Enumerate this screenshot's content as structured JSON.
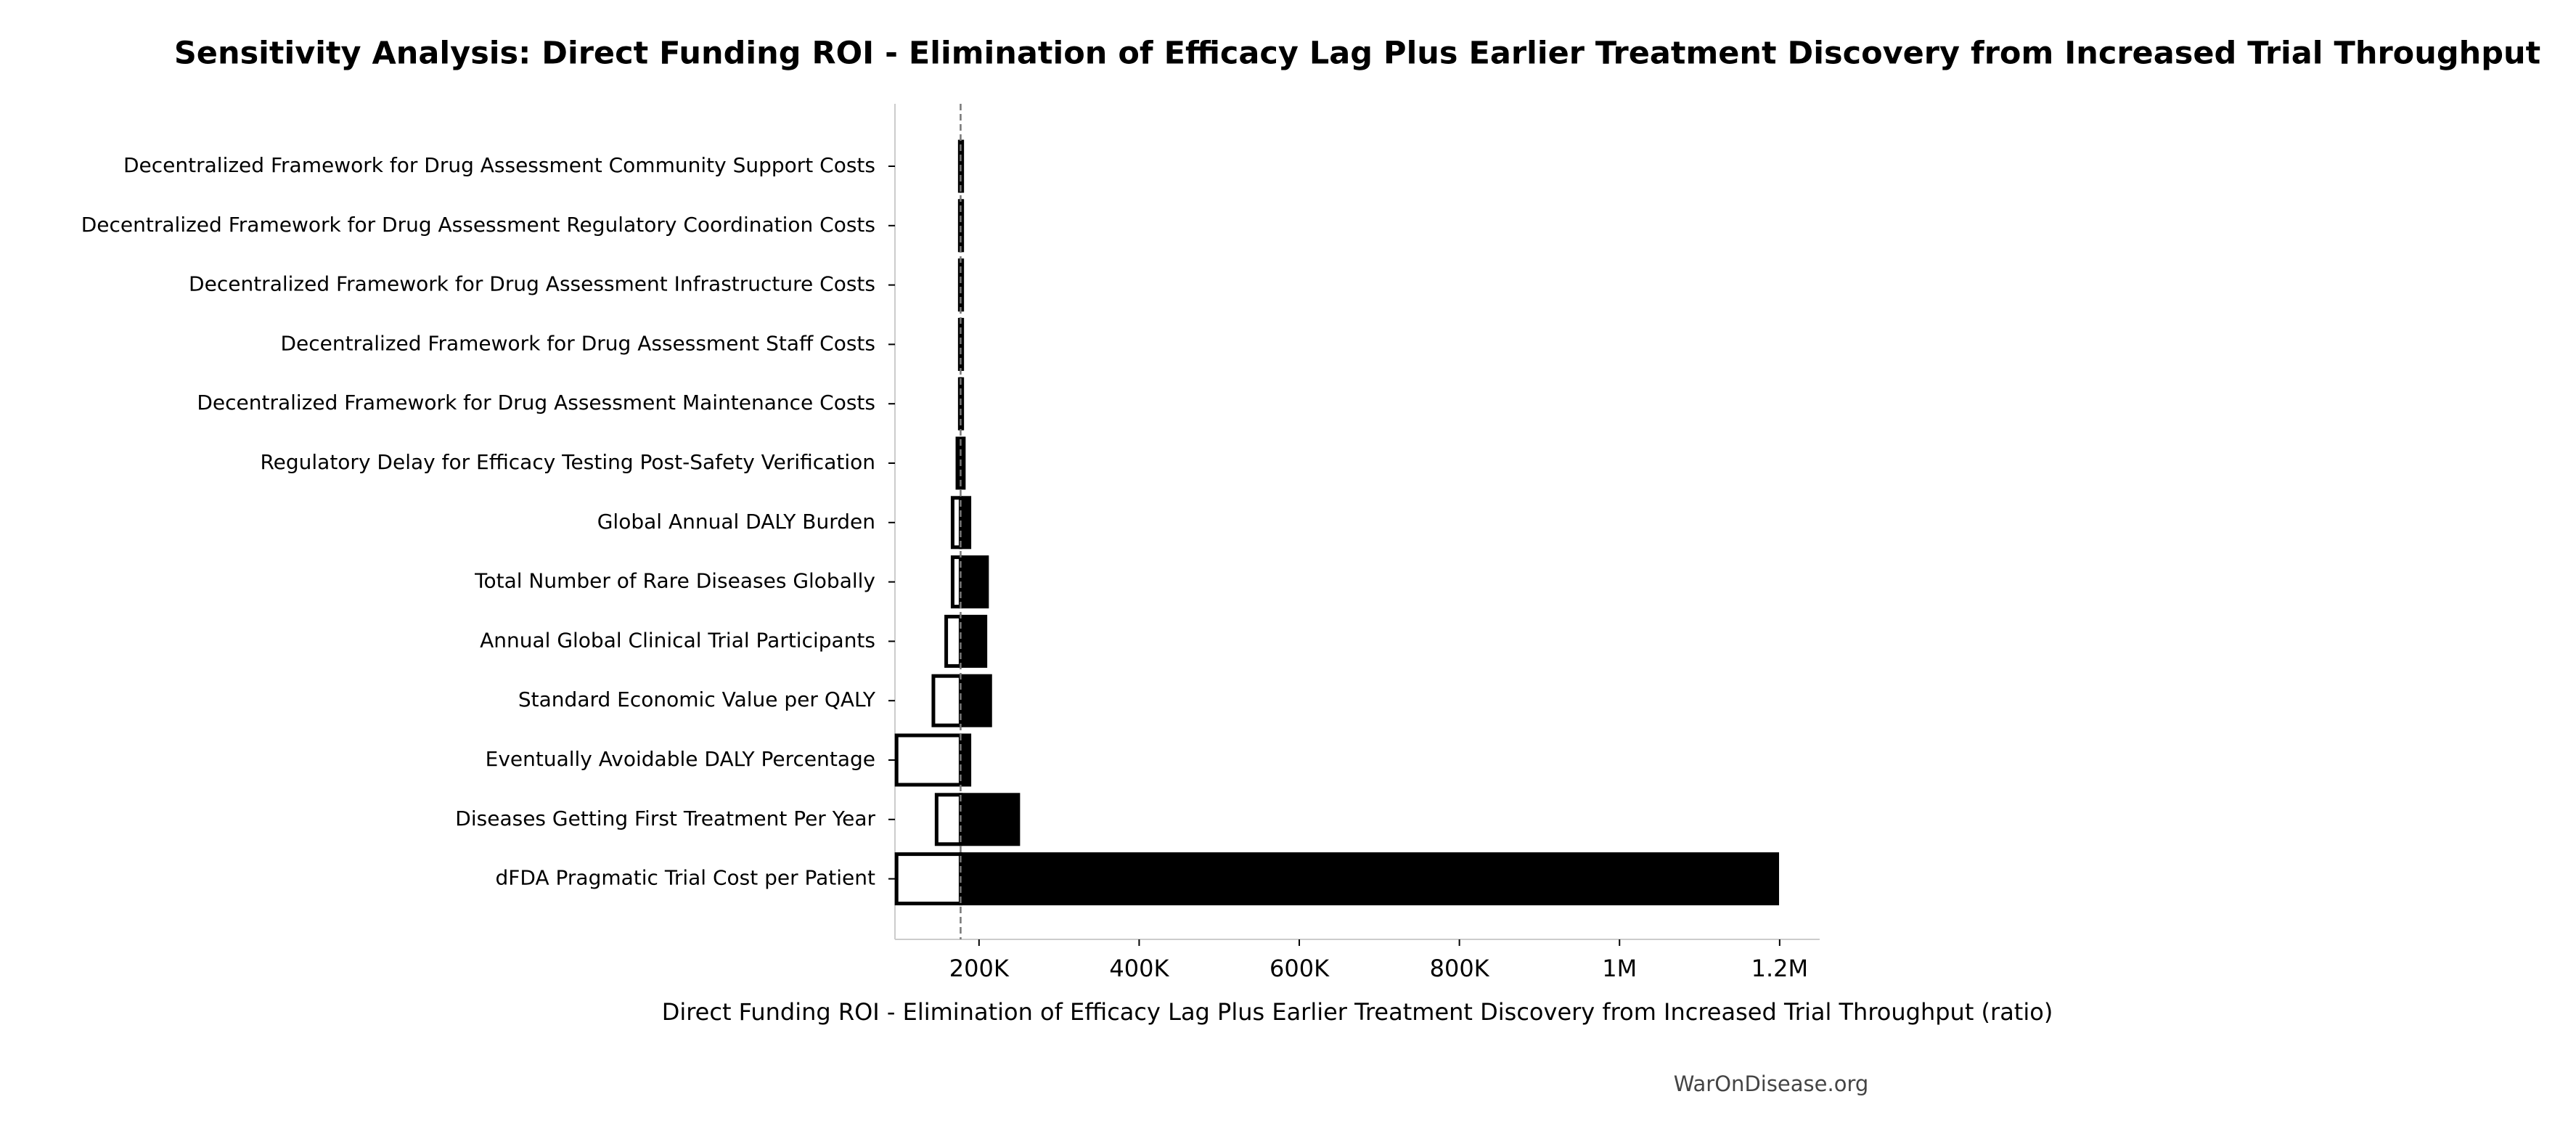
{
  "chart_data": {
    "type": "tornado",
    "title": "Sensitivity Analysis: Direct Funding ROI - Elimination of Efficacy Lag Plus Earlier Treatment Discovery from Increased Trial Throughput",
    "x_label": "Direct Funding ROI - Elimination of Efficacy Lag Plus Earlier Treatment Discovery from Increased Trial Throughput (ratio)",
    "source": "WarOnDisease.org",
    "categories": [
      "Decentralized Framework for Drug Assessment Community Support Costs",
      "Decentralized Framework for Drug Assessment Regulatory Coordination Costs",
      "Decentralized Framework for Drug Assessment Infrastructure Costs",
      "Decentralized Framework for Drug Assessment Staff Costs",
      "Decentralized Framework for Drug Assessment Maintenance Costs",
      "Regulatory Delay for Efficacy Testing Post-Safety Verification",
      "Global Annual DALY Burden",
      "Total Number of Rare Diseases Globally",
      "Annual Global Clinical Trial Participants",
      "Standard Economic Value per QALY",
      "Eventually Avoidable DALY Percentage",
      "Diseases Getting First Treatment Per Year",
      "dFDA Pragmatic Trial Cost per Patient"
    ],
    "baseline": 177000,
    "series": [
      {
        "color": "#ffffff",
        "values": [
          176000,
          176000,
          176000,
          176000,
          176000,
          173000,
          167000,
          167000,
          159000,
          143000,
          97000,
          147000,
          97000
        ]
      },
      {
        "color": "#000000",
        "values": [
          179000,
          179000,
          179000,
          179000,
          179000,
          181000,
          188000,
          210000,
          208000,
          214000,
          188000,
          249000,
          1197000
        ]
      }
    ],
    "xlim": [
      95000,
      1250000
    ],
    "xticks": [
      {
        "value": 200000,
        "label": "200K"
      },
      {
        "value": 400000,
        "label": "400K"
      },
      {
        "value": 600000,
        "label": "600K"
      },
      {
        "value": 800000,
        "label": "800K"
      },
      {
        "value": 1000000,
        "label": "1M"
      },
      {
        "value": 1200000,
        "label": "1.2M"
      }
    ]
  }
}
